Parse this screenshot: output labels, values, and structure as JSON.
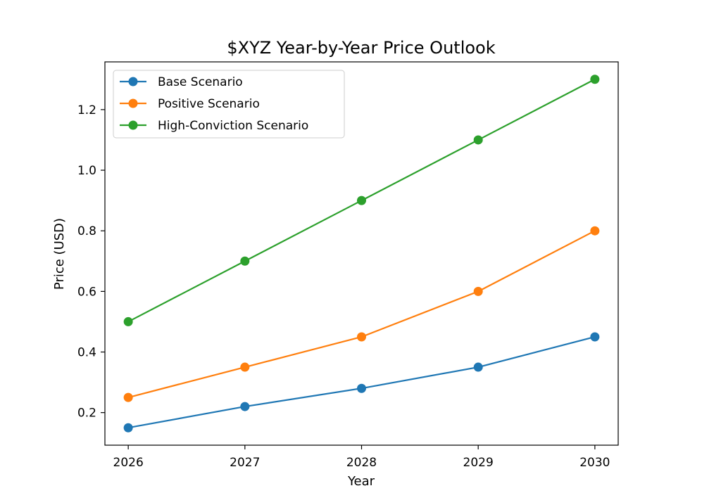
{
  "chart_data": {
    "type": "line",
    "title": "$XYZ Year-by-Year Price Outlook",
    "xlabel": "Year",
    "ylabel": "Price (USD)",
    "x": [
      2026,
      2027,
      2028,
      2029,
      2030
    ],
    "x_tick_labels": [
      "2026",
      "2027",
      "2028",
      "2029",
      "2030"
    ],
    "xlim": [
      2025.8,
      2030.2
    ],
    "ylim": [
      0.0925,
      1.3575
    ],
    "y_ticks": [
      0.2,
      0.4,
      0.6,
      0.8,
      1.0,
      1.2
    ],
    "y_tick_labels": [
      "0.2",
      "0.4",
      "0.6",
      "0.8",
      "1.0",
      "1.2"
    ],
    "grid": false,
    "legend_position": "top-left",
    "series": [
      {
        "name": "Base Scenario",
        "color": "#1f77b4",
        "marker": "circle",
        "values": [
          0.15,
          0.22,
          0.28,
          0.35,
          0.45
        ]
      },
      {
        "name": "Positive Scenario",
        "color": "#ff7f0e",
        "marker": "circle",
        "values": [
          0.25,
          0.35,
          0.45,
          0.6,
          0.8
        ]
      },
      {
        "name": "High-Conviction Scenario",
        "color": "#2ca02c",
        "marker": "circle",
        "values": [
          0.5,
          0.7,
          0.9,
          1.1,
          1.3
        ]
      }
    ]
  }
}
